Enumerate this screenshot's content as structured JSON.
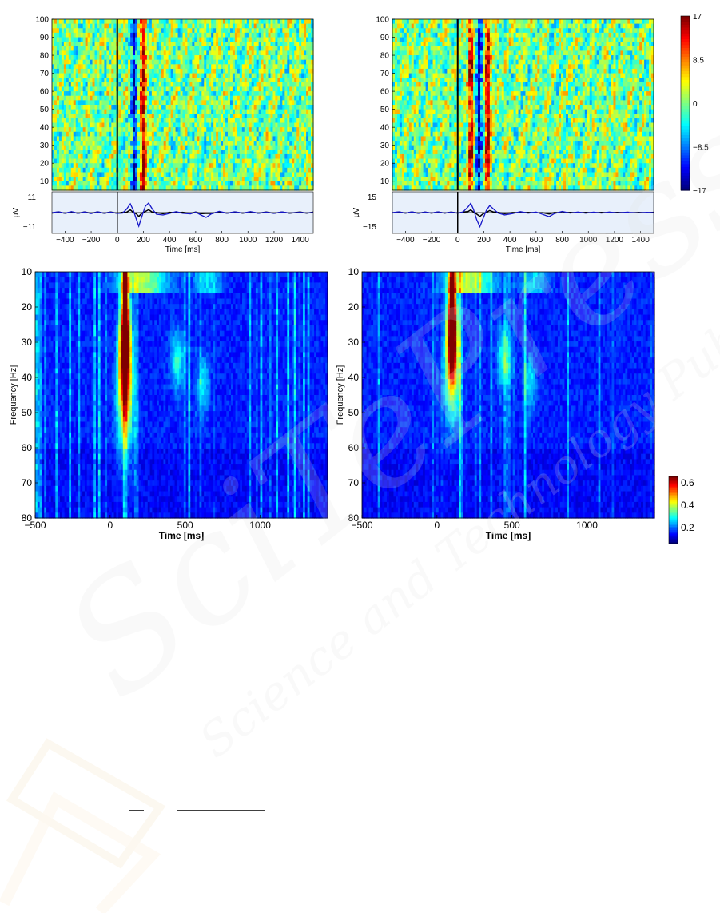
{
  "chart_data": [
    {
      "type": "heatmap",
      "panel": "top-left",
      "ylabel": "",
      "yticks": [
        10,
        20,
        30,
        40,
        50,
        60,
        70,
        80,
        90,
        100
      ],
      "xlim": [
        -500,
        1500
      ],
      "ylim": [
        5,
        100
      ],
      "event_line_x": 0,
      "vertical_bands": [
        {
          "x": 130,
          "kind": "negative"
        },
        {
          "x": 200,
          "kind": "positive"
        }
      ],
      "erp": {
        "ylabel": "μV",
        "yticks": [
          "11",
          "−11"
        ],
        "ylim": [
          -11,
          11
        ],
        "xticks": [
          "−400",
          "−200",
          "0",
          "200",
          "400",
          "600",
          "800",
          "1000",
          "1200",
          "1400"
        ],
        "xtick_values": [
          -400,
          -200,
          0,
          200,
          400,
          600,
          800,
          1000,
          1200,
          1400
        ],
        "xlabel": "Time [ms]",
        "points": [
          [
            -500,
            0
          ],
          [
            -450,
            0.5
          ],
          [
            -400,
            -0.4
          ],
          [
            -350,
            0.6
          ],
          [
            -300,
            -0.5
          ],
          [
            -250,
            0.4
          ],
          [
            -200,
            -0.6
          ],
          [
            -150,
            0.5
          ],
          [
            -100,
            -0.4
          ],
          [
            -50,
            0.3
          ],
          [
            0,
            -0.5
          ],
          [
            40,
            -0.3
          ],
          [
            70,
            2
          ],
          [
            100,
            5.5
          ],
          [
            125,
            1
          ],
          [
            145,
            -4
          ],
          [
            165,
            -8.5
          ],
          [
            190,
            -2
          ],
          [
            215,
            4
          ],
          [
            240,
            6
          ],
          [
            270,
            2
          ],
          [
            300,
            -1
          ],
          [
            350,
            -1.5
          ],
          [
            400,
            -0.5
          ],
          [
            450,
            0.6
          ],
          [
            500,
            -0.4
          ],
          [
            560,
            -0.8
          ],
          [
            600,
            0.3
          ],
          [
            640,
            -1.5
          ],
          [
            680,
            -3
          ],
          [
            720,
            -0.8
          ],
          [
            780,
            0.8
          ],
          [
            840,
            -0.4
          ],
          [
            900,
            0.5
          ],
          [
            960,
            -0.3
          ],
          [
            1020,
            0.6
          ],
          [
            1080,
            -0.4
          ],
          [
            1140,
            0.3
          ],
          [
            1200,
            -0.5
          ],
          [
            1260,
            0.4
          ],
          [
            1320,
            -0.3
          ],
          [
            1400,
            0.2
          ],
          [
            1450,
            -0.3
          ],
          [
            1500,
            0.1
          ]
        ]
      }
    },
    {
      "type": "heatmap",
      "panel": "top-right",
      "yticks": [
        10,
        20,
        30,
        40,
        50,
        60,
        70,
        80,
        90,
        100
      ],
      "xlim": [
        -500,
        1500
      ],
      "ylim": [
        5,
        100
      ],
      "event_line_x": 0,
      "vertical_bands": [
        {
          "x": 100,
          "kind": "positive"
        },
        {
          "x": 165,
          "kind": "negative"
        },
        {
          "x": 230,
          "kind": "positive"
        }
      ],
      "colorbar": {
        "ticks": [
          "17",
          "8.5",
          "0",
          "−8.5",
          "−17"
        ],
        "range": [
          -17,
          17
        ]
      },
      "erp": {
        "ylabel": "μV",
        "yticks": [
          "15",
          "−15"
        ],
        "ylim": [
          -15,
          15
        ],
        "xticks": [
          "−400",
          "−200",
          "0",
          "200",
          "400",
          "600",
          "800",
          "1000",
          "1200",
          "1400"
        ],
        "xtick_values": [
          -400,
          -200,
          0,
          200,
          400,
          600,
          800,
          1000,
          1200,
          1400
        ],
        "xlabel": "Time [ms]",
        "points": [
          [
            -500,
            0
          ],
          [
            -450,
            0.7
          ],
          [
            -400,
            -0.5
          ],
          [
            -350,
            0.6
          ],
          [
            -300,
            -0.7
          ],
          [
            -250,
            0.5
          ],
          [
            -200,
            -0.4
          ],
          [
            -150,
            0.7
          ],
          [
            -100,
            -0.5
          ],
          [
            -50,
            0.4
          ],
          [
            0,
            -0.4
          ],
          [
            40,
            0.5
          ],
          [
            80,
            5
          ],
          [
            100,
            8
          ],
          [
            120,
            3
          ],
          [
            145,
            -6
          ],
          [
            170,
            -12
          ],
          [
            195,
            -5
          ],
          [
            220,
            2
          ],
          [
            245,
            6
          ],
          [
            275,
            3
          ],
          [
            310,
            -0.5
          ],
          [
            360,
            -2
          ],
          [
            420,
            -0.8
          ],
          [
            480,
            0.8
          ],
          [
            540,
            -0.5
          ],
          [
            600,
            0.5
          ],
          [
            650,
            -1.5
          ],
          [
            700,
            -3.5
          ],
          [
            740,
            -0.8
          ],
          [
            800,
            1
          ],
          [
            860,
            -0.4
          ],
          [
            920,
            0.5
          ],
          [
            980,
            -0.5
          ],
          [
            1040,
            0.4
          ],
          [
            1100,
            -0.4
          ],
          [
            1160,
            0.5
          ],
          [
            1220,
            -0.3
          ],
          [
            1300,
            0.4
          ],
          [
            1380,
            -0.3
          ],
          [
            1450,
            0.3
          ],
          [
            1500,
            0
          ]
        ]
      }
    },
    {
      "type": "heatmap",
      "panel": "bottom-left",
      "xlabel": "Time [ms]",
      "ylabel": "Frequency [Hz]",
      "xticks": [
        "−500",
        "0",
        "500",
        "1000"
      ],
      "xtick_values": [
        -500,
        0,
        500,
        1000
      ],
      "yticks": [
        "10",
        "20",
        "30",
        "40",
        "50",
        "60",
        "70",
        "80"
      ],
      "ytick_values": [
        10,
        20,
        30,
        40,
        50,
        60,
        70,
        80
      ],
      "xlim": [
        -500,
        1450
      ],
      "ylim": [
        10,
        80
      ],
      "peak": {
        "time_ms": 100,
        "freq_range_hz": [
          12,
          50
        ],
        "max_value": 0.6
      }
    },
    {
      "type": "heatmap",
      "panel": "bottom-right",
      "xlabel": "Time [ms]",
      "ylabel": "Frequency [Hz]",
      "xticks": [
        "−500",
        "0",
        "500",
        "1000"
      ],
      "xtick_values": [
        -500,
        0,
        500,
        1000
      ],
      "yticks": [
        "10",
        "20",
        "30",
        "40",
        "50",
        "60",
        "70",
        "80"
      ],
      "ytick_values": [
        10,
        20,
        30,
        40,
        50,
        60,
        70,
        80
      ],
      "xlim": [
        -500,
        1450
      ],
      "ylim": [
        10,
        80
      ],
      "peak": {
        "time_ms": 100,
        "freq_range_hz": [
          10,
          42
        ],
        "max_value": 0.6
      },
      "colorbar": {
        "ticks": [
          "0.6",
          "0.4",
          "0.2"
        ],
        "tick_values": [
          0.6,
          0.4,
          0.2
        ],
        "range": [
          0.05,
          0.65
        ]
      }
    }
  ],
  "watermark": {
    "big": "SciTePress",
    "small": "Science and Technology Publications"
  }
}
